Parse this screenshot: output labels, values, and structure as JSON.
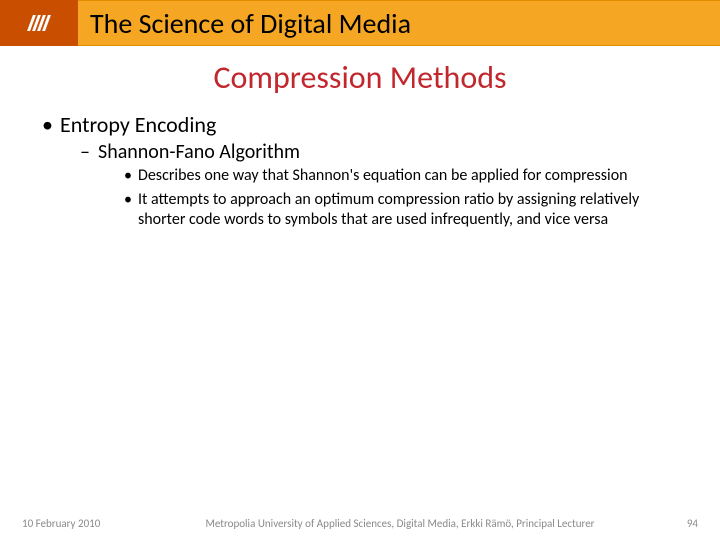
{
  "colors": {
    "logo_bg": "#c94e00",
    "title_bg": "#f5a623",
    "title_text": "#000000",
    "subtitle_red": "#c1272d",
    "body_text": "#000000",
    "footer_text": "#8a8a8a",
    "background": "#ffffff"
  },
  "header": {
    "title": "The Science of Digital Media"
  },
  "subtitle": "Compression Methods",
  "body": {
    "lvl1": "Entropy Encoding",
    "lvl2": "Shannon-Fano Algorithm",
    "lvl3a": "Describes one way that Shannon's equation can be applied for compression",
    "lvl3b": "It attempts to approach an optimum compression ratio by assigning relatively shorter code words to symbols that are used infrequently, and vice versa"
  },
  "footer": {
    "date": "10 February 2010",
    "org": "Metropolia University of Applied Sciences,  Digital Media, Erkki Rämö, Principal Lecturer",
    "page": "94"
  },
  "typography": {
    "title_fontsize": 28,
    "subtitle_fontsize": 32,
    "lvl1_fontsize": 22,
    "lvl2_fontsize": 20,
    "lvl3_fontsize": 16,
    "footer_fontsize": 11
  }
}
